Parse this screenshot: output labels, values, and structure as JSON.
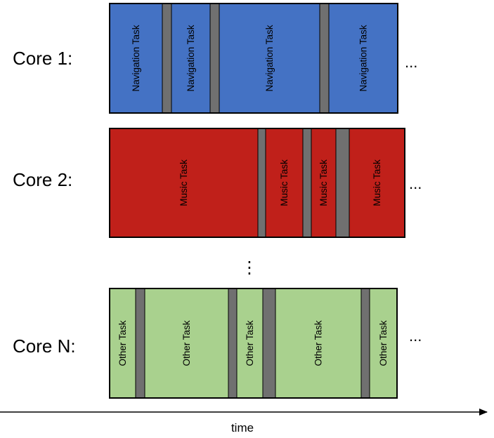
{
  "colors": {
    "navigation": "#4472c4",
    "music": "#c0201a",
    "other": "#a9d18e",
    "switch": "#707070",
    "border": "#000000"
  },
  "cores": [
    {
      "label": "Core 1:",
      "kind": "navigation",
      "continuation": "...",
      "blocks": [
        {
          "type": "task",
          "text": "Navigation Task"
        },
        {
          "type": "switch"
        },
        {
          "type": "task",
          "text": "Navigation Task"
        },
        {
          "type": "switch"
        },
        {
          "type": "task",
          "text": "Navigation Task"
        },
        {
          "type": "switch"
        },
        {
          "type": "task",
          "text": "Navigation Task"
        }
      ]
    },
    {
      "label": "Core 2:",
      "kind": "music",
      "continuation": "...",
      "blocks": [
        {
          "type": "task",
          "text": "Music Task"
        },
        {
          "type": "switch"
        },
        {
          "type": "task",
          "text": "Music Task"
        },
        {
          "type": "switch"
        },
        {
          "type": "task",
          "text": "Music Task"
        },
        {
          "type": "switch"
        },
        {
          "type": "task",
          "text": "Music Task"
        }
      ]
    },
    {
      "label": "Core N:",
      "kind": "other",
      "continuation": "...",
      "blocks": [
        {
          "type": "task",
          "text": "Other Task"
        },
        {
          "type": "switch"
        },
        {
          "type": "task",
          "text": "Other Task"
        },
        {
          "type": "switch"
        },
        {
          "type": "task",
          "text": "Other Task"
        },
        {
          "type": "switch"
        },
        {
          "type": "task",
          "text": "Other Task"
        },
        {
          "type": "switch"
        },
        {
          "type": "task",
          "text": "Other Task"
        }
      ]
    }
  ],
  "vertical_ellipsis": "⋮",
  "axis": {
    "label": "time"
  }
}
